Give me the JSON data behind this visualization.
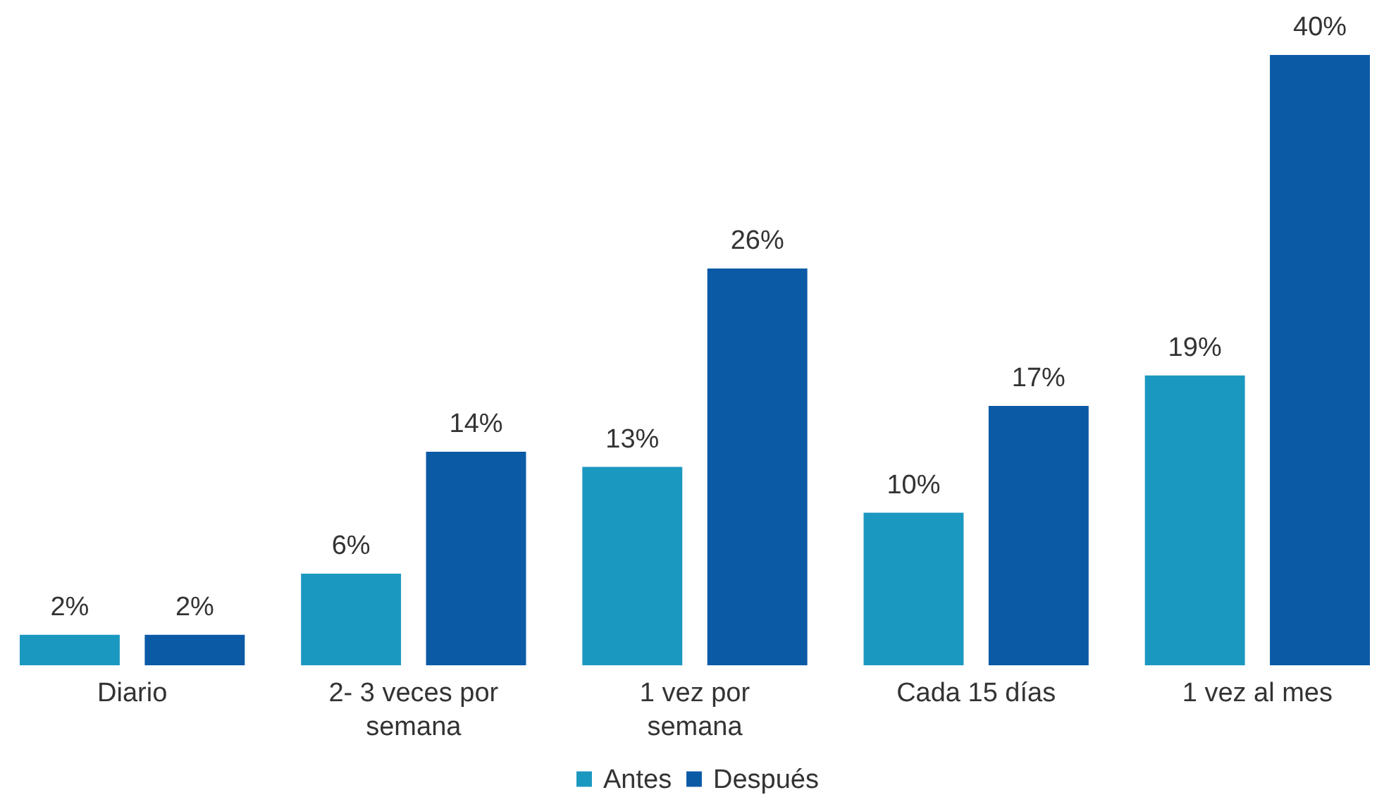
{
  "chart_data": {
    "type": "bar",
    "categories": [
      "Diario",
      "2- 3 veces por semana",
      "1 vez por semana",
      "Cada 15 días",
      "1 vez al mes"
    ],
    "series": [
      {
        "name": "Antes",
        "color": "#1b98c0",
        "values": [
          2,
          6,
          13,
          10,
          19
        ],
        "value_labels": [
          "2%",
          "6%",
          "13%",
          "10%",
          "19%"
        ]
      },
      {
        "name": "Después",
        "color": "#0b5aa6",
        "values": [
          2,
          14,
          26,
          17,
          40
        ],
        "value_labels": [
          "2%",
          "14%",
          "26%",
          "17%",
          "40%"
        ]
      }
    ],
    "legend": "bottom",
    "grid": false
  }
}
